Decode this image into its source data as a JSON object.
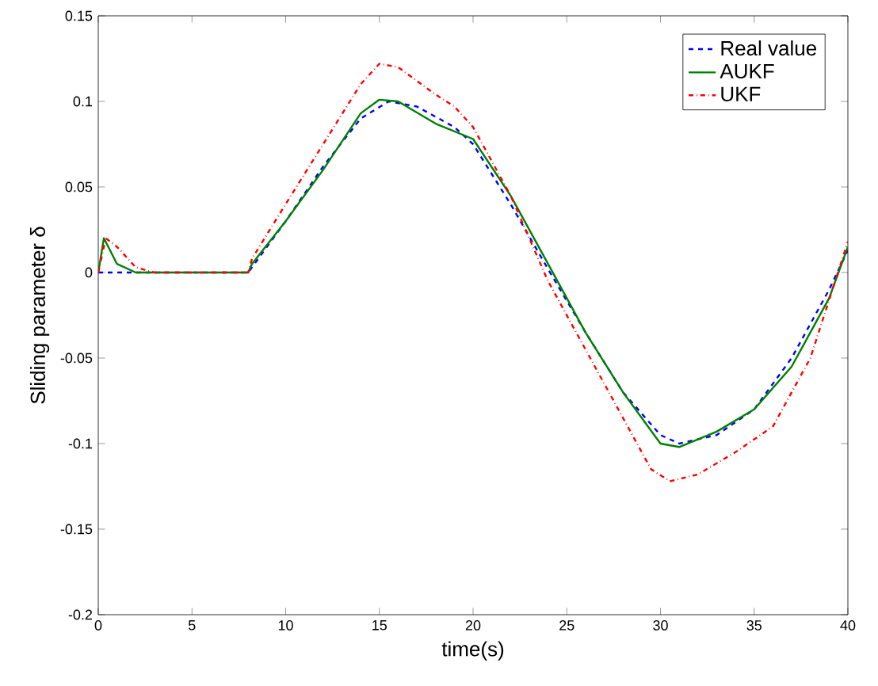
{
  "chart_data": {
    "type": "line",
    "xlabel": "time(s)",
    "ylabel": "Sliding parameter δ",
    "xlim": [
      0,
      40
    ],
    "ylim": [
      -0.2,
      0.15
    ],
    "xticks": [
      0,
      5,
      10,
      15,
      20,
      25,
      30,
      35,
      40
    ],
    "yticks": [
      -0.2,
      -0.15,
      -0.1,
      -0.05,
      0,
      0.05,
      0.1,
      0.15
    ],
    "legend": "top right",
    "grid": false,
    "series": [
      {
        "name": "Real value",
        "color": "#0000ff",
        "line_style": "dashed",
        "x": [
          0,
          8,
          10,
          12,
          14,
          15.5,
          17,
          19,
          20,
          22,
          24,
          26,
          28,
          30,
          31,
          33,
          35,
          37,
          39,
          40
        ],
        "values": [
          0,
          0,
          0.03,
          0.062,
          0.09,
          0.1,
          0.097,
          0.085,
          0.075,
          0.04,
          0.002,
          -0.035,
          -0.07,
          -0.095,
          -0.1,
          -0.095,
          -0.08,
          -0.05,
          -0.01,
          0.013
        ]
      },
      {
        "name": "AUKF",
        "color": "#008000",
        "line_style": "solid",
        "x": [
          0,
          0.3,
          1,
          2,
          8,
          8.2,
          10,
          12,
          14,
          15,
          16,
          18,
          20,
          22,
          24,
          26,
          28,
          30,
          31,
          33,
          35,
          37,
          39,
          40
        ],
        "values": [
          0,
          0.02,
          0.005,
          0,
          0,
          0.005,
          0.03,
          0.06,
          0.093,
          0.101,
          0.1,
          0.087,
          0.078,
          0.045,
          0.005,
          -0.035,
          -0.07,
          -0.1,
          -0.102,
          -0.093,
          -0.08,
          -0.055,
          -0.015,
          0.015
        ]
      },
      {
        "name": "UKF",
        "color": "#ff0000",
        "line_style": "dashdotted",
        "x": [
          0,
          0.4,
          1,
          2,
          3,
          8,
          8.2,
          10,
          12,
          14,
          15,
          16,
          18,
          19,
          20,
          22,
          24,
          26,
          28,
          29.5,
          30.5,
          32,
          34,
          36,
          38,
          40
        ],
        "values": [
          0,
          0.02,
          0.015,
          0.003,
          0,
          0,
          0.008,
          0.04,
          0.075,
          0.11,
          0.122,
          0.12,
          0.104,
          0.097,
          0.085,
          0.045,
          -0.005,
          -0.045,
          -0.085,
          -0.115,
          -0.122,
          -0.118,
          -0.105,
          -0.09,
          -0.05,
          0.018
        ]
      }
    ]
  }
}
